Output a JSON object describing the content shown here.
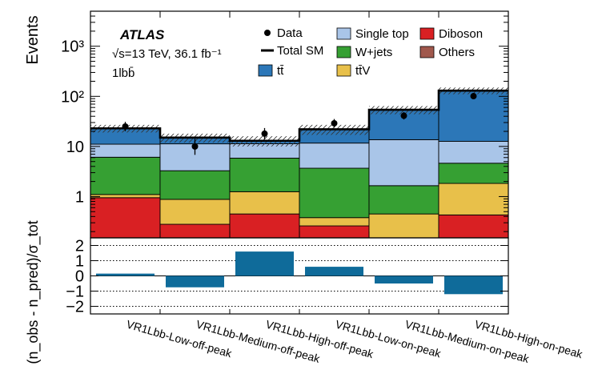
{
  "chart_data": {
    "type": "stacked-bar-histogram",
    "experiment": "ATLAS",
    "energy_label": "√s=13 TeV, 36.1 fb⁻¹",
    "region_label": "1lbb̄",
    "ylabel": "Events",
    "yscale": "log",
    "ylim": [
      0.15,
      5000
    ],
    "yticks": [
      {
        "value": 1,
        "label": "1"
      },
      {
        "value": 10,
        "label": "10"
      },
      {
        "value": 100,
        "label": "10²"
      },
      {
        "value": 1000,
        "label": "10³"
      }
    ],
    "categories": [
      "VR1Lbb-Low-off-peak",
      "VR1Lbb-Medium-off-peak",
      "VR1Lbb-High-off-peak",
      "VR1Lbb-Low-on-peak",
      "VR1Lbb-Medium-on-peak",
      "VR1Lbb-High-on-peak"
    ],
    "legend_title": "",
    "series": [
      {
        "name": "Others",
        "label": "Others",
        "color": "#a0584c",
        "values": [
          0.0,
          0.0,
          0.0,
          0.0,
          0.0,
          0.03
        ]
      },
      {
        "name": "Diboson",
        "label": "Diboson",
        "color": "#d92023",
        "values": [
          0.95,
          0.28,
          0.45,
          0.26,
          0.15,
          0.4
        ]
      },
      {
        "name": "ttV",
        "label": "tt̄V",
        "color": "#e8c04a",
        "values": [
          0.15,
          0.6,
          0.8,
          0.12,
          0.3,
          1.4
        ]
      },
      {
        "name": "W+jets",
        "label": "W+jets",
        "color": "#36a033",
        "values": [
          5.0,
          2.4,
          4.6,
          3.3,
          1.2,
          2.8
        ]
      },
      {
        "name": "Single top",
        "label": "Single top",
        "color": "#a9c5e8",
        "values": [
          5.0,
          8.0,
          5.5,
          8.0,
          12.0,
          8.0
        ]
      },
      {
        "name": "ttbar",
        "label": "tt̄",
        "color": "#2c77b8",
        "values": [
          11.9,
          3.72,
          1.65,
          10.32,
          40.35,
          117.37
        ]
      }
    ],
    "total_sm": [
      23,
      15,
      13,
      22,
      54,
      130
    ],
    "uncertainty_band": {
      "low": [
        19,
        12,
        10,
        17,
        44,
        110
      ],
      "high": [
        27,
        18,
        16,
        27,
        64,
        150
      ]
    },
    "data": {
      "label": "Data",
      "values": [
        25,
        10,
        18,
        29,
        41,
        101
      ],
      "err_low": [
        4.8,
        3.2,
        4.2,
        5.3,
        6.4,
        10.0
      ],
      "err_high": [
        6.0,
        4.2,
        5.3,
        6.3,
        7.4,
        11.1
      ]
    },
    "ratio_panel": {
      "ylabel": "(n_obs - n_pred)/σ_tot",
      "ylim": [
        -2.5,
        2.5
      ],
      "yticks": [
        {
          "value": 2,
          "label": "2"
        },
        {
          "value": 1,
          "label": "1"
        },
        {
          "value": 0,
          "label": "0"
        },
        {
          "value": -1,
          "label": "−1"
        },
        {
          "value": -2,
          "label": "−2"
        }
      ],
      "dotted_lines": [
        -2,
        -1,
        1,
        2
      ],
      "color": "#0f6b9a",
      "values": [
        0.15,
        -0.75,
        1.6,
        0.6,
        -0.5,
        -1.2
      ]
    }
  }
}
